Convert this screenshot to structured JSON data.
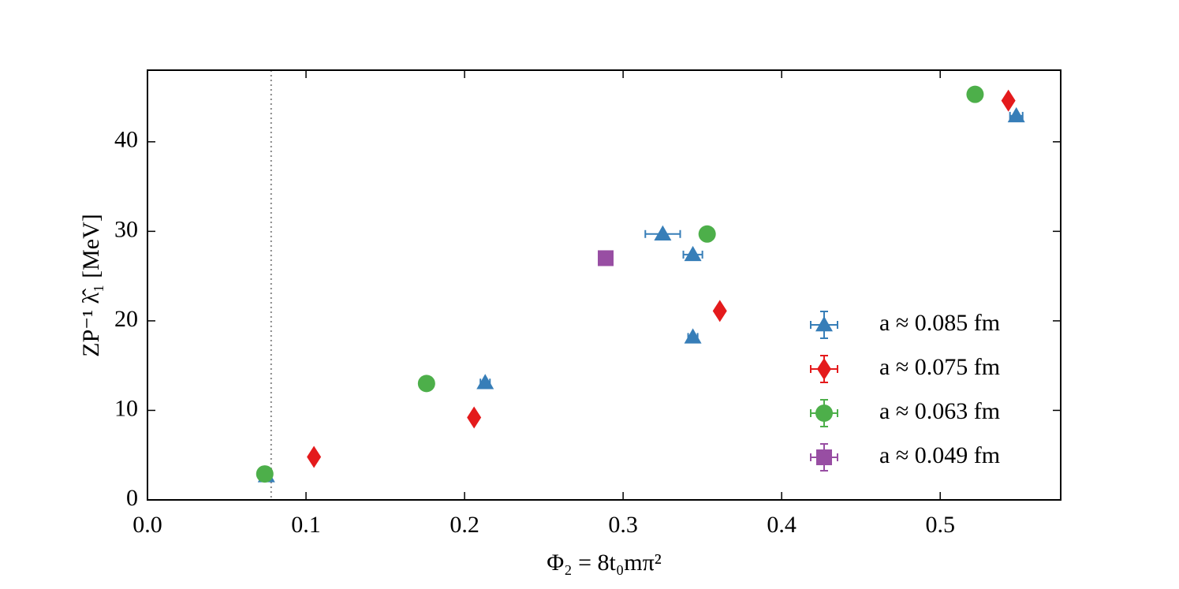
{
  "chart_data": {
    "type": "scatter",
    "x_label": "Φ₂ = 8t₀mπ²",
    "y_label": "ZP⁻¹ λ̂₁ [MeV]",
    "xlim": [
      0,
      0.576
    ],
    "ylim": [
      0,
      48
    ],
    "xticks": [
      {
        "value": 0,
        "label": "0.0"
      },
      0.1,
      0.2,
      0.3,
      0.4,
      0.5
    ],
    "yticks": [
      0,
      10,
      20,
      30,
      40
    ],
    "vline": 0.078,
    "legend": "lower right",
    "series": [
      {
        "name": "a ≈ 0.085 fm",
        "color": "#377eb8",
        "marker": "triangle",
        "x": [
          0.075,
          0.213,
          0.325,
          0.344,
          0.344,
          0.548
        ],
        "values": [
          2.7,
          13.1,
          29.7,
          27.4,
          18.2,
          42.9
        ],
        "xerr": [
          0.002,
          0.003,
          0.011,
          0.006,
          0.003,
          0.004
        ],
        "yerr": [
          0.3,
          0.3,
          0.6,
          0.5,
          0.4,
          0.5
        ]
      },
      {
        "name": "a ≈ 0.075 fm",
        "color": "#e41a1c",
        "marker": "diamond",
        "x": [
          0.105,
          0.206,
          0.361,
          0.543
        ],
        "values": [
          4.8,
          9.2,
          21.1,
          44.6
        ]
      },
      {
        "name": "a ≈ 0.063 fm",
        "color": "#4daf4a",
        "marker": "circle",
        "x": [
          0.074,
          0.176,
          0.353,
          0.522
        ],
        "values": [
          2.9,
          13.0,
          29.7,
          45.3
        ]
      },
      {
        "name": "a ≈ 0.049 fm",
        "color": "#984ea3",
        "marker": "square",
        "x": [
          0.289
        ],
        "values": [
          27.0
        ]
      }
    ]
  }
}
